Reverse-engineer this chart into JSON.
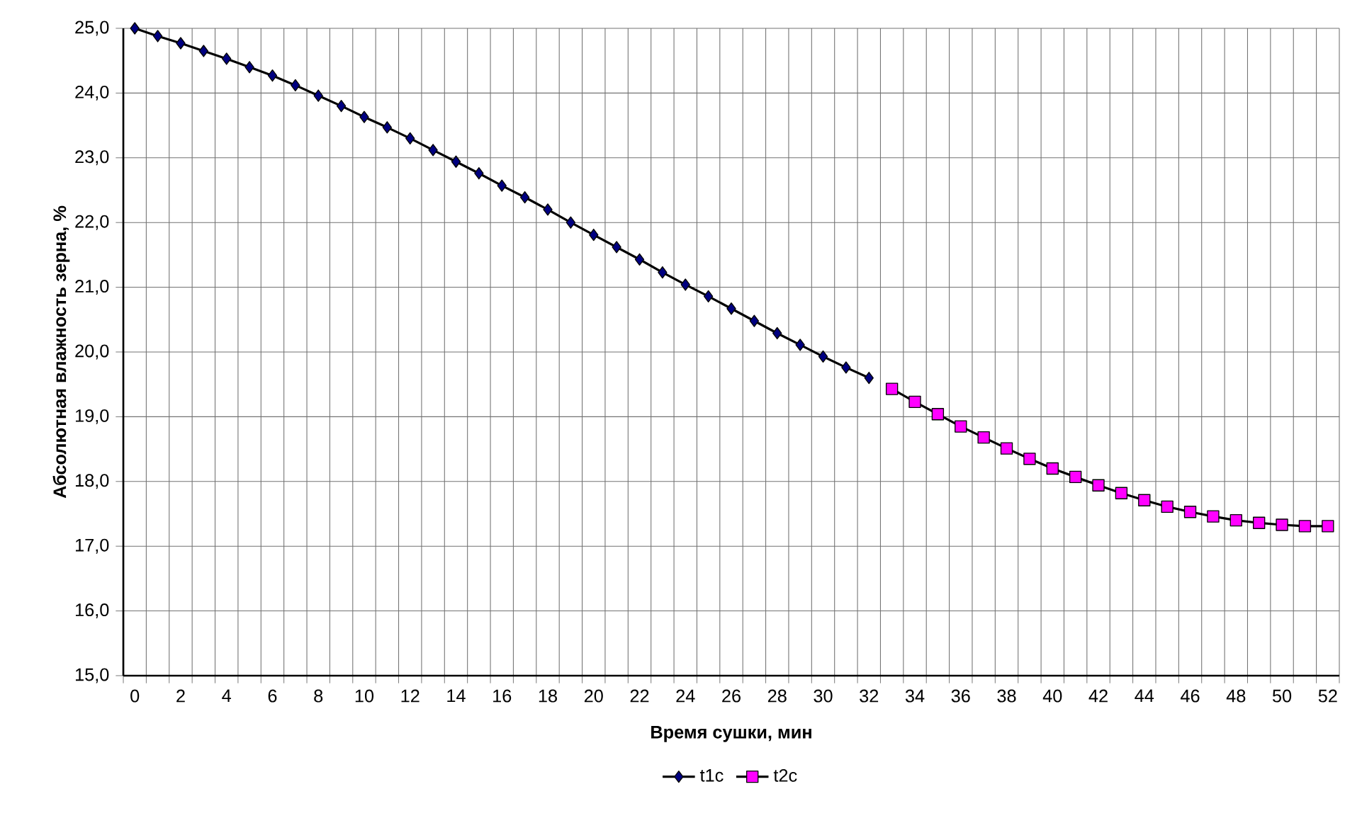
{
  "chart_data": {
    "type": "line",
    "xlabel": "Время сушки, мин",
    "ylabel": "Абсолютная влажность зерна, %",
    "categories": [
      "0",
      null,
      "2",
      null,
      "4",
      null,
      "6",
      null,
      "8",
      null,
      "10",
      null,
      "12",
      null,
      "14",
      null,
      "16",
      null,
      "18",
      null,
      "20",
      null,
      "22",
      null,
      "24",
      null,
      "26",
      null,
      "28",
      null,
      "30",
      null,
      "32",
      null,
      "34",
      null,
      "36",
      null,
      "38",
      null,
      "40",
      null,
      "42",
      null,
      "44",
      null,
      "46",
      null,
      "48",
      null,
      "50",
      null,
      "52"
    ],
    "series": [
      {
        "name": "t1c",
        "color": "#000080",
        "marker": "diamond",
        "values": [
          25.0,
          24.88,
          24.77,
          24.65,
          24.53,
          24.4,
          24.27,
          24.12,
          23.96,
          23.8,
          23.63,
          23.47,
          23.3,
          23.12,
          22.94,
          22.76,
          22.57,
          22.39,
          22.2,
          22.0,
          21.81,
          21.62,
          21.43,
          21.23,
          21.04,
          20.86,
          20.67,
          20.48,
          20.29,
          20.11,
          19.93,
          19.76,
          19.6,
          null,
          null,
          null,
          null,
          null,
          null,
          null,
          null,
          null,
          null,
          null,
          null,
          null,
          null,
          null,
          null,
          null,
          null,
          null,
          null
        ]
      },
      {
        "name": "t2c",
        "color": "#ff00ff",
        "marker": "square",
        "values": [
          null,
          null,
          null,
          null,
          null,
          null,
          null,
          null,
          null,
          null,
          null,
          null,
          null,
          null,
          null,
          null,
          null,
          null,
          null,
          null,
          null,
          null,
          null,
          null,
          null,
          null,
          null,
          null,
          null,
          null,
          null,
          null,
          null,
          19.43,
          19.23,
          19.04,
          18.85,
          18.68,
          18.51,
          18.35,
          18.2,
          18.07,
          17.94,
          17.82,
          17.71,
          17.61,
          17.53,
          17.46,
          17.4,
          17.36,
          17.33,
          17.31,
          17.31
        ]
      }
    ],
    "ylim": [
      15,
      25
    ],
    "yticks": [
      {
        "value": 15,
        "label": "15,0"
      },
      {
        "value": 16,
        "label": "16,0"
      },
      {
        "value": 17,
        "label": "17,0"
      },
      {
        "value": 18,
        "label": "18,0"
      },
      {
        "value": 19,
        "label": "19,0"
      },
      {
        "value": 20,
        "label": "20,0"
      },
      {
        "value": 21,
        "label": "21,0"
      },
      {
        "value": 22,
        "label": "22,0"
      },
      {
        "value": 23,
        "label": "23,0"
      },
      {
        "value": 24,
        "label": "24,0"
      },
      {
        "value": 25,
        "label": "25,0"
      }
    ],
    "grid": true,
    "legend": "bottom",
    "line_style": "solid"
  }
}
